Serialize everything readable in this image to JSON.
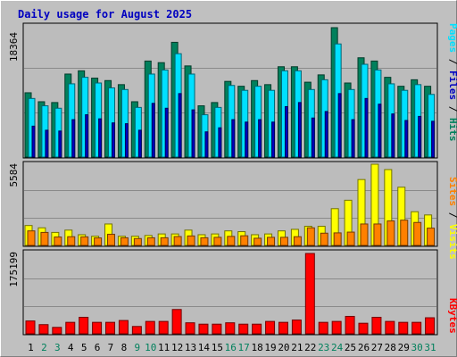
{
  "chart_data": [
    {
      "type": "bar",
      "title": "Daily usage for August 2025",
      "x": [
        "1",
        "2",
        "3",
        "4",
        "5",
        "6",
        "7",
        "8",
        "9",
        "10",
        "11",
        "12",
        "13",
        "14",
        "15",
        "16",
        "17",
        "18",
        "19",
        "20",
        "21",
        "22",
        "23",
        "24",
        "25",
        "26",
        "27",
        "28",
        "29",
        "30",
        "31"
      ],
      "weekend_days": [
        "2",
        "3",
        "9",
        "10",
        "16",
        "17",
        "23",
        "24",
        "30",
        "31"
      ],
      "max_label": "18364",
      "ylabel_parts": [
        "Pages",
        "Files",
        "Hits"
      ],
      "series": [
        {
          "name": "Hits",
          "color": "#00805c",
          "values": [
            7900,
            6800,
            6700,
            10200,
            10600,
            9700,
            9400,
            8900,
            6800,
            11800,
            11600,
            14100,
            11200,
            6300,
            6700,
            9300,
            8700,
            9400,
            8900,
            11100,
            11100,
            9200,
            10100,
            15900,
            9100,
            12200,
            11800,
            9800,
            8700,
            9500,
            8700
          ]
        },
        {
          "name": "Files",
          "color": "#00e0ff",
          "values": [
            7200,
            6300,
            6000,
            9000,
            9800,
            9100,
            8500,
            8300,
            6100,
            10200,
            10700,
            12700,
            10200,
            5200,
            6100,
            8800,
            8200,
            8700,
            8200,
            10600,
            10600,
            8300,
            9500,
            13900,
            8300,
            11400,
            10700,
            9000,
            8200,
            8900,
            7700
          ]
        },
        {
          "name": "Pages",
          "color": "#0000c0",
          "values": [
            3800,
            3300,
            3200,
            4600,
            5200,
            4700,
            4200,
            4100,
            3300,
            6600,
            6000,
            7800,
            5800,
            3100,
            3600,
            4600,
            4300,
            4600,
            4300,
            6200,
            6700,
            4800,
            5600,
            7800,
            4600,
            7200,
            6500,
            5300,
            4500,
            5000,
            4400
          ]
        }
      ]
    },
    {
      "type": "bar",
      "max_label": "5584",
      "ylabel_parts": [
        "Sites",
        "Visits"
      ],
      "series": [
        {
          "name": "Visits",
          "color": "#ffff00",
          "values": [
            1300,
            1150,
            850,
            1000,
            700,
            600,
            1400,
            600,
            600,
            650,
            750,
            750,
            1000,
            700,
            750,
            950,
            900,
            700,
            750,
            950,
            1050,
            1250,
            1250,
            2400,
            2950,
            4300,
            5300,
            4950,
            3800,
            2200,
            1990
          ]
        },
        {
          "name": "Sites",
          "color": "#ff8000",
          "values": [
            950,
            850,
            550,
            570,
            560,
            490,
            730,
            500,
            450,
            500,
            500,
            580,
            620,
            500,
            530,
            590,
            630,
            470,
            530,
            530,
            570,
            1150,
            800,
            820,
            870,
            1400,
            1400,
            1600,
            1650,
            1500,
            1130
          ]
        }
      ]
    },
    {
      "type": "bar",
      "max_label": "175199",
      "ylabel_parts": [
        "KBytes"
      ],
      "series": [
        {
          "name": "KBytes",
          "color": "#ff0000",
          "values": [
            28000,
            20000,
            14000,
            25000,
            36000,
            25000,
            25000,
            29000,
            16000,
            27000,
            27000,
            53000,
            24000,
            21000,
            21000,
            24000,
            21000,
            21000,
            27000,
            25000,
            30000,
            175199,
            25000,
            27000,
            38000,
            23000,
            36000,
            27000,
            25000,
            25000,
            35000
          ]
        }
      ]
    }
  ]
}
